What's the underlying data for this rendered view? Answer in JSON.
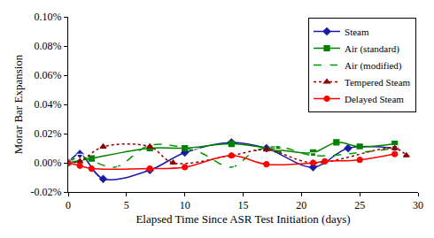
{
  "chart_data": {
    "type": "line",
    "x_label": "Elapsed Time Since ASR Test Initiation (days)",
    "y_label": "Morar Bar Expansion",
    "xlim": [
      0,
      30
    ],
    "xticks": [
      0,
      5,
      10,
      15,
      20,
      25,
      30
    ],
    "ylim": [
      -0.02,
      0.1
    ],
    "yticks": [
      {
        "value": -0.02,
        "label": "-0.02%"
      },
      {
        "value": 0,
        "label": "0.00%"
      },
      {
        "value": 0.02,
        "label": "0.02%"
      },
      {
        "value": 0.04,
        "label": "0.04%"
      },
      {
        "value": 0.06,
        "label": "0.06%"
      },
      {
        "value": 0.08,
        "label": "0.08%"
      },
      {
        "value": 0.1,
        "label": "0.10%"
      }
    ],
    "grid": false,
    "legend": "top-right",
    "series": [
      {
        "name": "Steam",
        "color": "#1a1aa6",
        "marker": "diamond",
        "line_style": "solid",
        "x": [
          0,
          1,
          3,
          7,
          10,
          14,
          17,
          21,
          24,
          28
        ],
        "values": [
          0,
          0.006,
          -0.011,
          -0.005,
          0.007,
          0.014,
          0.01,
          -0.003,
          0.01,
          0.01
        ]
      },
      {
        "name": "Air (standard)",
        "color": "#008000",
        "marker": "square",
        "line_style": "solid",
        "x": [
          0,
          2,
          7,
          10,
          14,
          18,
          21,
          23,
          25,
          28
        ],
        "values": [
          0,
          0.003,
          0.01,
          0.01,
          0.013,
          0.009,
          0.007,
          0.014,
          0.011,
          0.013
        ]
      },
      {
        "name": "Air (modified)",
        "color": "#009900",
        "marker": "square-open",
        "line_style": "dash",
        "x": [
          0,
          1,
          4,
          7,
          11,
          14,
          16,
          18,
          21,
          25,
          28
        ],
        "values": [
          0,
          0.004,
          -0.003,
          0.012,
          0.008,
          -0.003,
          0.008,
          0.011,
          0.005,
          0.007,
          0.01
        ]
      },
      {
        "name": "Tempered Steam",
        "color": "#8b0000",
        "marker": "triangle-up",
        "line_style": "dot",
        "x": [
          0,
          1,
          3,
          7,
          9,
          14,
          17,
          21,
          28,
          29
        ],
        "values": [
          0,
          0.001,
          0.011,
          0.011,
          0,
          0.005,
          0.009,
          0,
          0.01,
          0.005
        ]
      },
      {
        "name": "Delayed Steam",
        "color": "#ff0000",
        "marker": "circle",
        "line_style": "solid",
        "x": [
          0,
          1,
          2,
          7,
          10,
          14,
          17,
          21,
          22,
          25,
          28
        ],
        "values": [
          0,
          -0.002,
          -0.004,
          -0.004,
          -0.003,
          0.005,
          -0.001,
          0,
          0.001,
          0.002,
          0.006
        ]
      }
    ]
  }
}
